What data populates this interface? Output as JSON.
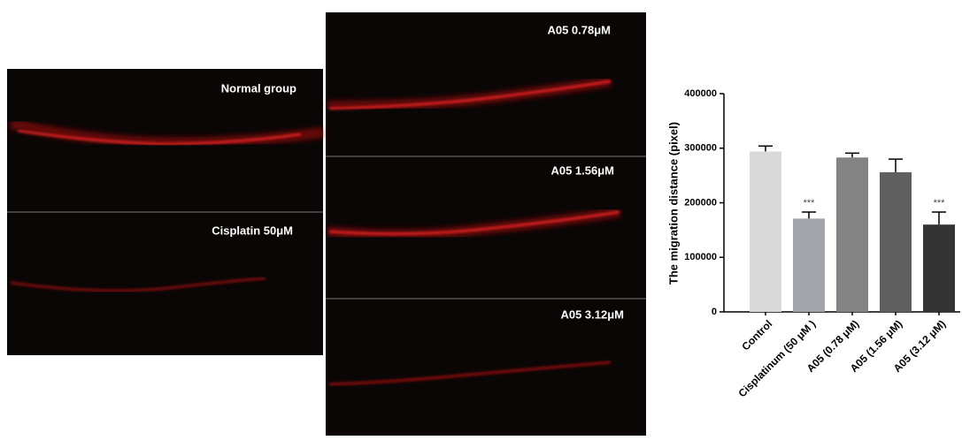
{
  "images": {
    "panels": [
      {
        "label": "Normal group"
      },
      {
        "label": "Cisplatin  50μM"
      },
      {
        "label": "A05  0.78μM"
      },
      {
        "label": "A05  1.56μM"
      },
      {
        "label": "A05  3.12μM"
      }
    ]
  },
  "chart_data": {
    "type": "bar",
    "y_label": "The migration distance  (pixel)",
    "categories": [
      "Control",
      "Cisplatinum (50 μM )",
      "A05 (0.78 μM)",
      "A05 (1.56 μM)",
      "A05 (3.12 μM)"
    ],
    "values": [
      294000,
      171000,
      283000,
      256000,
      160000
    ],
    "errors": [
      10000,
      12000,
      8000,
      24000,
      23000
    ],
    "colors": [
      "#d9d9d9",
      "#a3a3ab",
      "#838383",
      "#5f5f5f",
      "#333333"
    ],
    "annotations": [
      null,
      "***",
      null,
      null,
      "***"
    ],
    "ylim": [
      0,
      400000
    ],
    "yticks": [
      0,
      100000,
      200000,
      300000,
      400000
    ],
    "grid": false
  }
}
